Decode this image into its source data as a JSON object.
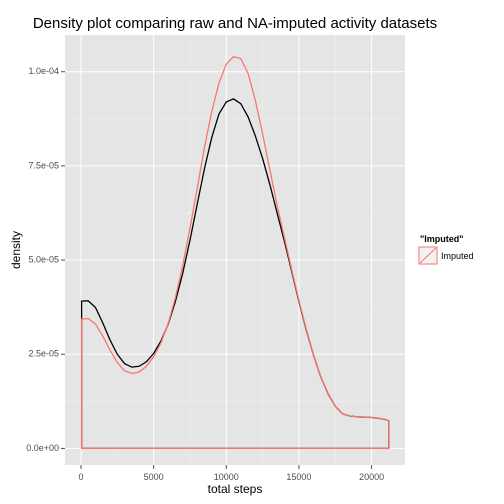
{
  "chart_data": {
    "type": "line",
    "title": "Density plot comparing raw and NA-imputed activity datasets",
    "xlabel": "total steps",
    "ylabel": "density",
    "xlim": [
      -1100,
      22300
    ],
    "ylim": [
      -4.4e-06,
      0.00010975
    ],
    "x_ticks": [
      0,
      5000,
      10000,
      15000,
      20000
    ],
    "x_tick_labels": [
      "0",
      "5000",
      "10000",
      "15000",
      "20000"
    ],
    "y_ticks": [
      0,
      2.5e-05,
      5e-05,
      7.5e-05,
      0.0001
    ],
    "y_tick_labels": [
      "0.0e+00",
      "2.5e-05",
      "5.0e-05",
      "7.5e-05",
      "1.0e-04"
    ],
    "grid": true,
    "legend": {
      "title": "\"Imputed\"",
      "position": "right",
      "entries": [
        "Imputed"
      ]
    },
    "series": [
      {
        "color": "#000000",
        "x": [
          41,
          500,
          1000,
          1500,
          2000,
          2500,
          3000,
          3500,
          4000,
          4500,
          5000,
          5500,
          6000,
          6500,
          7000,
          7500,
          8000,
          8500,
          9000,
          9500,
          10000,
          10500,
          11000,
          11500,
          12000,
          12500,
          13000,
          13500,
          14000,
          14500,
          15000,
          15500,
          16000,
          16500,
          17000,
          17500,
          18000,
          18500,
          19000,
          19500,
          20000,
          20500,
          21000,
          21194
        ],
        "y": [
          3.91e-05,
          3.92e-05,
          3.74e-05,
          3.33e-05,
          2.88e-05,
          2.5e-05,
          2.25e-05,
          2.16e-05,
          2.18e-05,
          2.3e-05,
          2.52e-05,
          2.85e-05,
          3.3e-05,
          3.9e-05,
          4.65e-05,
          5.53e-05,
          6.48e-05,
          7.43e-05,
          8.26e-05,
          8.88e-05,
          9.2e-05,
          9.28e-05,
          9.15e-05,
          8.8e-05,
          8.3e-05,
          7.7e-05,
          7e-05,
          6.25e-05,
          5.5e-05,
          4.7e-05,
          3.9e-05,
          3.15e-05,
          2.48e-05,
          1.9e-05,
          1.45e-05,
          1.12e-05,
          9.2e-06,
          8.6e-06,
          8.4e-06,
          8.3e-06,
          8.2e-06,
          8e-06,
          7.6e-06,
          7.3e-06
        ]
      },
      {
        "name": "Imputed",
        "color": "#f8766d",
        "x": [
          41,
          500,
          1000,
          1500,
          2000,
          2500,
          3000,
          3500,
          4000,
          4500,
          5000,
          5500,
          6000,
          6500,
          7000,
          7500,
          8000,
          8500,
          9000,
          9500,
          10000,
          10500,
          11000,
          11500,
          12000,
          12500,
          13000,
          13500,
          14000,
          14500,
          15000,
          15500,
          16000,
          16500,
          17000,
          17500,
          18000,
          18500,
          19000,
          19500,
          20000,
          20500,
          21000,
          21194
        ],
        "y": [
          3.43e-05,
          3.45e-05,
          3.3e-05,
          2.98e-05,
          2.61e-05,
          2.28e-05,
          2.06e-05,
          1.99e-05,
          2.03e-05,
          2.18e-05,
          2.43e-05,
          2.8e-05,
          3.32e-05,
          4e-05,
          4.85e-05,
          5.85e-05,
          6.9e-05,
          8e-05,
          8.95e-05,
          9.7e-05,
          0.000102,
          0.000104,
          0.0001035,
          9.95e-05,
          9.25e-05,
          8.35e-05,
          7.4e-05,
          6.45e-05,
          5.6e-05,
          4.75e-05,
          3.93e-05,
          3.17e-05,
          2.48e-05,
          1.9e-05,
          1.44e-05,
          1.12e-05,
          9.2e-06,
          8.6e-06,
          8.4e-06,
          8.3e-06,
          8.2e-06,
          8e-06,
          7.6e-06,
          7.3e-06
        ]
      }
    ]
  }
}
